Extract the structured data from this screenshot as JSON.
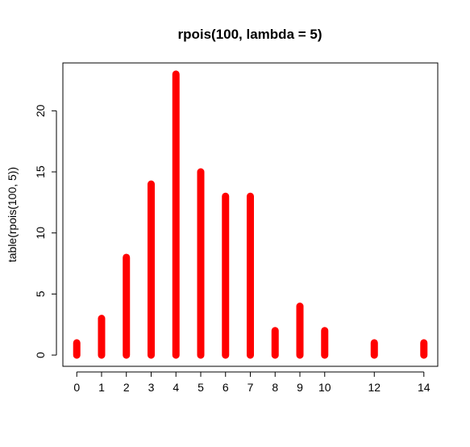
{
  "chart_data": {
    "type": "bar",
    "title": "rpois(100, lambda = 5)",
    "xlabel": "",
    "ylabel": "table(rpois(100, 5))",
    "x": [
      0,
      1,
      2,
      3,
      4,
      5,
      6,
      7,
      8,
      9,
      10,
      12,
      14
    ],
    "values": [
      1,
      3,
      8,
      14,
      23,
      15,
      13,
      13,
      2,
      4,
      2,
      1,
      1
    ],
    "x_tick_labels": [
      "0",
      "1",
      "2",
      "3",
      "4",
      "5",
      "6",
      "7",
      "8",
      "9",
      "10",
      "12",
      "14"
    ],
    "y_ticks": [
      0,
      5,
      10,
      15,
      20
    ],
    "y_tick_labels": [
      "0",
      "5",
      "10",
      "15",
      "20"
    ],
    "xlim": [
      -0.56,
      14.56
    ],
    "ylim": [
      -0.92,
      23.92
    ],
    "bar_color": "#ff0000",
    "grid": false
  }
}
